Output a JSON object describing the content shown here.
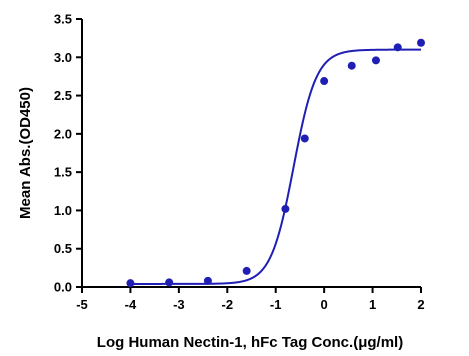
{
  "chart_data": {
    "type": "scatter",
    "title": "",
    "xlabel": "Log Human Nectin-1, hFc Tag Conc.(μg/ml)",
    "ylabel": "Mean Abs.(OD450)",
    "xlim": [
      -5,
      2
    ],
    "ylim": [
      0,
      3.5
    ],
    "x_ticks": [
      "-5",
      "-4",
      "-3",
      "-2",
      "-1",
      "0",
      "1",
      "2"
    ],
    "y_ticks": [
      "0.0",
      "0.5",
      "1.0",
      "1.5",
      "2.0",
      "2.5",
      "3.0",
      "3.5"
    ],
    "grid": false,
    "legend": "none",
    "colors": {
      "series": "#1f1fb4"
    },
    "series": [
      {
        "points": [
          {
            "x": -4.0,
            "y": 0.05
          },
          {
            "x": -3.2,
            "y": 0.06
          },
          {
            "x": -2.4,
            "y": 0.08
          },
          {
            "x": -1.6,
            "y": 0.21
          },
          {
            "x": -0.8,
            "y": 1.02
          },
          {
            "x": -0.4,
            "y": 1.94
          },
          {
            "x": 0.0,
            "y": 2.69
          },
          {
            "x": 0.57,
            "y": 2.89
          },
          {
            "x": 1.07,
            "y": 2.96
          },
          {
            "x": 1.52,
            "y": 3.13
          },
          {
            "x": 2.0,
            "y": 3.19
          }
        ],
        "fit": {
          "model": "4PL",
          "bottom": 0.04,
          "top": 3.1,
          "log_ec50": -0.63,
          "hill": 1.85,
          "x_range": [
            -4.0,
            2.0
          ]
        }
      }
    ]
  }
}
